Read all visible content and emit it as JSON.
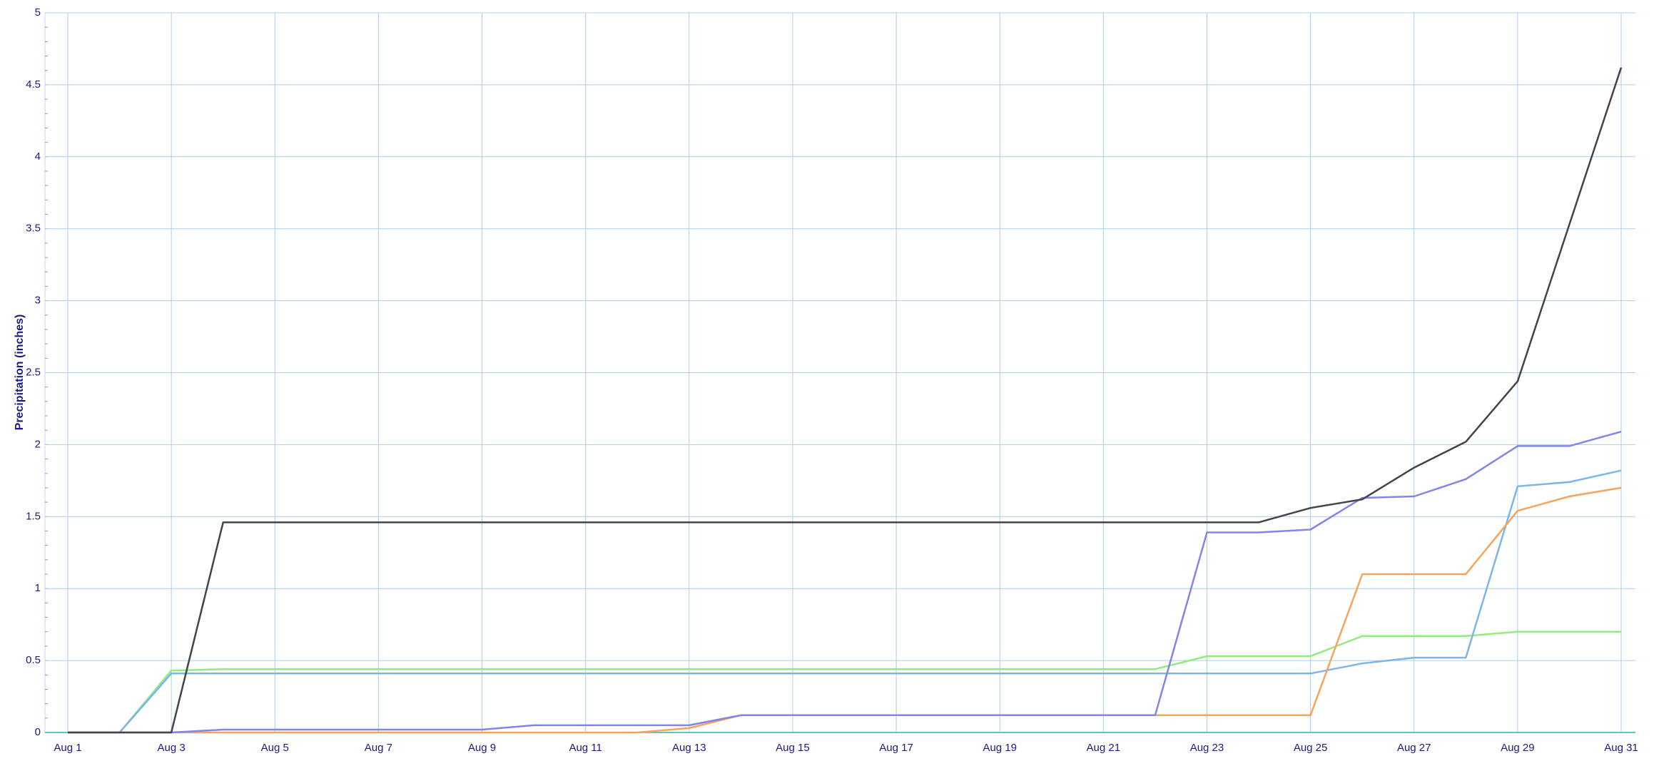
{
  "chart_data": {
    "type": "line",
    "y_label": "Precipitation (inches)",
    "categories": [
      "Aug 1",
      null,
      "Aug 3",
      null,
      "Aug 5",
      null,
      "Aug 7",
      null,
      "Aug 9",
      null,
      "Aug 11",
      null,
      "Aug 13",
      null,
      "Aug 15",
      null,
      "Aug 17",
      null,
      "Aug 19",
      null,
      "Aug 21",
      null,
      "Aug 23",
      null,
      "Aug 25",
      null,
      "Aug 27",
      null,
      "Aug 29",
      null,
      "Aug 31"
    ],
    "series": [
      {
        "color": "#90ed7d",
        "values": [
          0,
          0,
          0.43,
          0.44,
          0.44,
          0.44,
          0.44,
          0.44,
          0.44,
          0.44,
          0.44,
          0.44,
          0.44,
          0.44,
          0.44,
          0.44,
          0.44,
          0.44,
          0.44,
          0.44,
          0.44,
          0.44,
          0.53,
          0.53,
          0.53,
          0.67,
          0.67,
          0.67,
          0.7,
          0.7,
          0.7
        ]
      },
      {
        "color": "#7cb5ec",
        "values": [
          0,
          0,
          0.41,
          0.41,
          0.41,
          0.41,
          0.41,
          0.41,
          0.41,
          0.41,
          0.41,
          0.41,
          0.41,
          0.41,
          0.41,
          0.41,
          0.41,
          0.41,
          0.41,
          0.41,
          0.41,
          0.41,
          0.41,
          0.41,
          0.41,
          0.48,
          0.52,
          0.52,
          1.71,
          1.74,
          1.82
        ]
      },
      {
        "color": "#f7a35c",
        "values": [
          0,
          0,
          0,
          0,
          0,
          0,
          0,
          0,
          0,
          0,
          0,
          0,
          0.03,
          0.12,
          0.12,
          0.12,
          0.12,
          0.12,
          0.12,
          0.12,
          0.12,
          0.12,
          0.12,
          0.12,
          0.12,
          1.1,
          1.1,
          1.1,
          1.54,
          1.64,
          1.7
        ]
      },
      {
        "color": "#8085e9",
        "values": [
          0,
          0,
          0,
          0.02,
          0.02,
          0.02,
          0.02,
          0.02,
          0.02,
          0.05,
          0.05,
          0.05,
          0.05,
          0.12,
          0.12,
          0.12,
          0.12,
          0.12,
          0.12,
          0.12,
          0.12,
          0.12,
          1.39,
          1.39,
          1.41,
          1.63,
          1.64,
          1.76,
          1.99,
          1.99,
          2.09
        ]
      },
      {
        "color": "#434348",
        "values": [
          0,
          0,
          0,
          1.46,
          1.46,
          1.46,
          1.46,
          1.46,
          1.46,
          1.46,
          1.46,
          1.46,
          1.46,
          1.46,
          1.46,
          1.46,
          1.46,
          1.46,
          1.46,
          1.46,
          1.46,
          1.46,
          1.46,
          1.46,
          1.56,
          1.62,
          1.84,
          2.02,
          2.44,
          3.53,
          4.62
        ]
      }
    ],
    "ylim": [
      0,
      5
    ],
    "yticks": [
      0,
      0.5,
      1,
      1.5,
      2,
      2.5,
      3,
      3.5,
      4,
      4.5,
      5
    ],
    "grid": true
  }
}
